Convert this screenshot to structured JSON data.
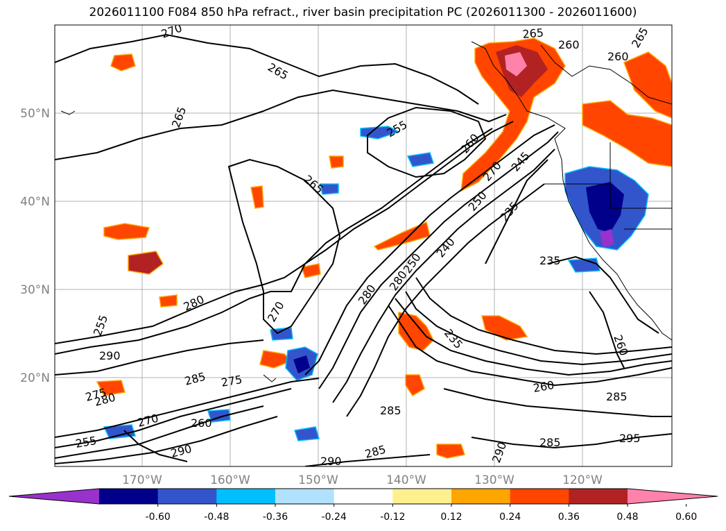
{
  "title": "2026011100 F084 850 hPa refract., river basin precipitation PC (2026011300 - 2026011600)",
  "lat_labels": [
    "50°N",
    "40°N",
    "30°N",
    "20°N"
  ],
  "lon_labels": [
    "170°W",
    "160°W",
    "150°W",
    "140°W",
    "130°W",
    "120°W"
  ],
  "colorbar": {
    "colors": [
      "#9932cc",
      "#00008b",
      "#3355cc",
      "#00bfff",
      "#b0e2ff",
      "#ffffff",
      "#fff08f",
      "#ffa500",
      "#ff4500",
      "#b22222",
      "#ff82ab"
    ],
    "ticks": [
      "-0.60",
      "-0.48",
      "-0.36",
      "-0.24",
      "-0.12",
      "0.12",
      "0.24",
      "0.36",
      "0.48",
      "0.60"
    ]
  },
  "contour_labels": [
    "270",
    "265",
    "265",
    "260",
    "255",
    "265",
    "260",
    "270",
    "245",
    "235",
    "250",
    "240",
    "235",
    "280",
    "270",
    "280",
    "290",
    "275",
    "285",
    "275",
    "260",
    "270",
    "255",
    "280",
    "290",
    "285",
    "290",
    "285",
    "235",
    "260",
    "260",
    "285",
    "285",
    "295",
    "260",
    "265",
    "265",
    "255",
    "250",
    "280",
    "290"
  ]
}
